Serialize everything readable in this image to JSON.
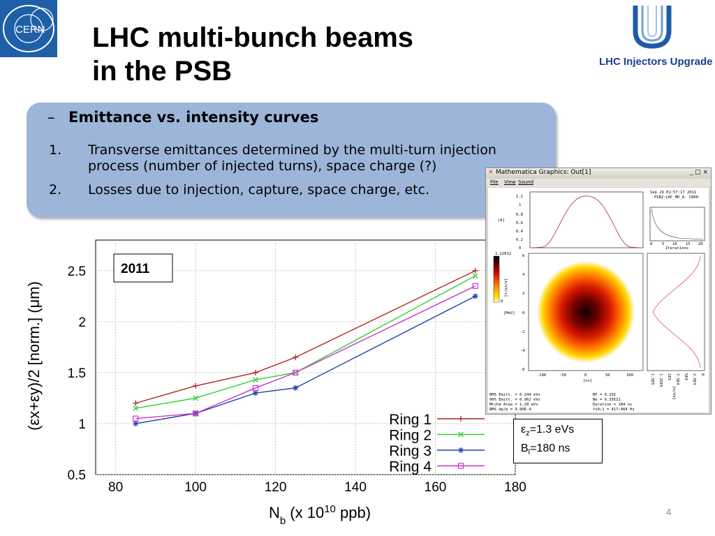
{
  "cern_logo": {
    "text": "CERN"
  },
  "title": {
    "line1": "LHC multi-bunch beams",
    "line2": "in the PSB"
  },
  "lhc_logo": {
    "text": "LHC Injectors Upgrade"
  },
  "box": {
    "heading_dash": "–",
    "heading": "Emittance vs. intensity curves",
    "items": [
      {
        "num": "1.",
        "line1": "Transverse emittances determined by the multi-turn injection",
        "line2": "process (number of injected turns), space charge (?)"
      },
      {
        "num": "2.",
        "line1": "Losses due to injection, capture, space charge, etc."
      }
    ]
  },
  "chart_data": {
    "type": "line",
    "title": "2011",
    "xlabel_main": "N",
    "xlabel_sub": "b",
    "xlabel_rest": " (x 10",
    "xlabel_sup": "10",
    "xlabel_end": " ppb)",
    "ylabel": "(εx+εy)/2  [norm.] (μm)",
    "xlim": [
      75,
      180
    ],
    "ylim": [
      0.5,
      2.8
    ],
    "xticks": [
      80,
      100,
      120,
      140,
      160,
      180
    ],
    "yticks": [
      0.5,
      1,
      1.5,
      2,
      2.5
    ],
    "ytick_labels": [
      "0.5",
      "1",
      "1.5",
      "2",
      "2.5"
    ],
    "grid": true,
    "legend_position": "bottom-right",
    "series": [
      {
        "name": "Ring 1",
        "color": "#b22222",
        "marker": "plus",
        "x": [
          85,
          100,
          115,
          125,
          170
        ],
        "y": [
          1.2,
          1.37,
          1.5,
          1.65,
          2.5
        ]
      },
      {
        "name": "Ring 2",
        "color": "#32cd32",
        "marker": "cross",
        "x": [
          85,
          100,
          115,
          125,
          170
        ],
        "y": [
          1.15,
          1.25,
          1.43,
          1.5,
          2.45
        ]
      },
      {
        "name": "Ring 3",
        "color": "#1f3fb0",
        "marker": "star",
        "x": [
          85,
          100,
          115,
          125,
          170
        ],
        "y": [
          1.0,
          1.1,
          1.3,
          1.35,
          2.25
        ]
      },
      {
        "name": "Ring 4",
        "color": "#cc33cc",
        "marker": "square",
        "x": [
          85,
          100,
          115,
          125,
          170
        ],
        "y": [
          1.05,
          1.1,
          1.35,
          1.5,
          2.35
        ]
      }
    ]
  },
  "mathematica": {
    "window_title": "Mathematica Graphics:  Out[1]",
    "menu": [
      "File",
      "View",
      "Sound"
    ],
    "controls": "_ □ ×",
    "timestamp": "Sep 29 01:57:17 2011",
    "subtitle": "PSB2:LHC_MD_A. C800",
    "top_plot": {
      "ylabel": "[A]",
      "yticks": [
        "0",
        "0.2",
        "0.4",
        "0.6",
        "0.8",
        "1",
        "1.2"
      ]
    },
    "iter_plot": {
      "xticks": [
        "0",
        "5",
        "10",
        "15",
        "20"
      ],
      "xlabel": "Iterations"
    },
    "colorbar": {
      "max": "1.22E12",
      "min": "0",
      "label": "[e/eV/s]"
    },
    "density": {
      "ylabel": "[MeV]",
      "yticks": [
        "4",
        "2",
        "0",
        "-2",
        "-4",
        "-6",
        "6"
      ],
      "xticks": [
        "-100",
        "-50",
        "0",
        "50",
        "100"
      ],
      "xlabel": "[ns]"
    },
    "side_plot": {
      "xticks": [
        "1.5E5",
        "1.25E5",
        "1E5",
        "7.5E4",
        "5E4",
        "2.5E4",
        "0"
      ],
      "xlabel": "[e/eV]"
    },
    "stats_left": [
      "RMS Emitt. = 0.244 eVs",
      "90% Emitt. = 0.962 eVs",
      "Mtchd Area = 1.28 eVs",
      "RMS dp/p = 9.96E-4"
    ],
    "stats_right": [
      "BF = 0.202",
      "Ne = 9.35E11",
      "Duration = 184 ns",
      "fs0;1 = 417;404 Hz"
    ]
  },
  "info": {
    "eps_sym": "ε",
    "eps_sub": "z",
    "eps_val": "=1.3 eVs",
    "bl_sym": "B",
    "bl_sub": "l",
    "bl_val": "=180 ns"
  },
  "page_number": "4"
}
